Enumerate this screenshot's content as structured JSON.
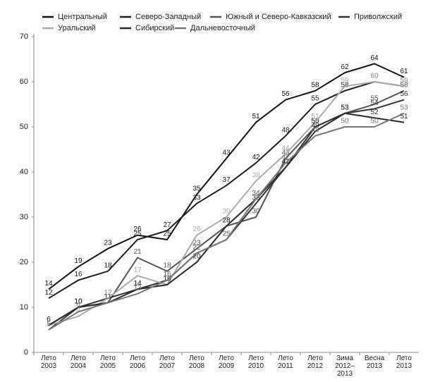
{
  "chart_data": {
    "type": "line",
    "categories": [
      "Лето\n2003",
      "Лето\n2004",
      "Лето\n2005",
      "Лето\n2006",
      "Лето\n2007",
      "Лето\n2008",
      "Лето\n2009",
      "Лето\n2010",
      "Лето\n2011",
      "Лето\n2012",
      "Зима\n2012–\n2013",
      "Весна\n2013",
      "Лето\n2013"
    ],
    "series": [
      {
        "name": "Центральный",
        "color": "#111111",
        "values": [
          14,
          19,
          23,
          26,
          25,
          35,
          43,
          51,
          56,
          58,
          62,
          64,
          61
        ]
      },
      {
        "name": "Северо-Западный",
        "color": "#1e1e1e",
        "values": [
          12,
          16,
          18,
          25,
          27,
          33,
          37,
          42,
          48,
          55,
          58,
          60,
          59
        ]
      },
      {
        "name": "Южный и Северо-Кавказский",
        "color": "#555555",
        "values": [
          6,
          10,
          11,
          21,
          18,
          23,
          28,
          30,
          43,
          50,
          53,
          55,
          58
        ]
      },
      {
        "name": "Приволжский",
        "color": "#333333",
        "values": [
          5,
          10,
          12,
          14,
          16,
          22,
          25,
          33,
          41,
          50,
          53,
          54,
          56
        ]
      },
      {
        "name": "Уральский",
        "color": "#aaaaaa",
        "values": [
          6,
          8,
          12,
          17,
          15,
          26,
          30,
          38,
          44,
          51,
          59,
          60,
          59
        ]
      },
      {
        "name": "Сибирский",
        "color": "#2a2a2a",
        "values": [
          6,
          10,
          11,
          14,
          15,
          20,
          28,
          34,
          41,
          49,
          53,
          52,
          51
        ]
      },
      {
        "name": "Дальневосточный",
        "color": "#777777",
        "values": [
          5,
          9,
          11,
          13,
          16,
          22,
          25,
          34,
          42,
          48,
          50,
          50,
          53
        ]
      }
    ],
    "ylim": [
      0,
      70
    ],
    "yticks": [
      0,
      10,
      20,
      30,
      40,
      50,
      60,
      70
    ]
  }
}
